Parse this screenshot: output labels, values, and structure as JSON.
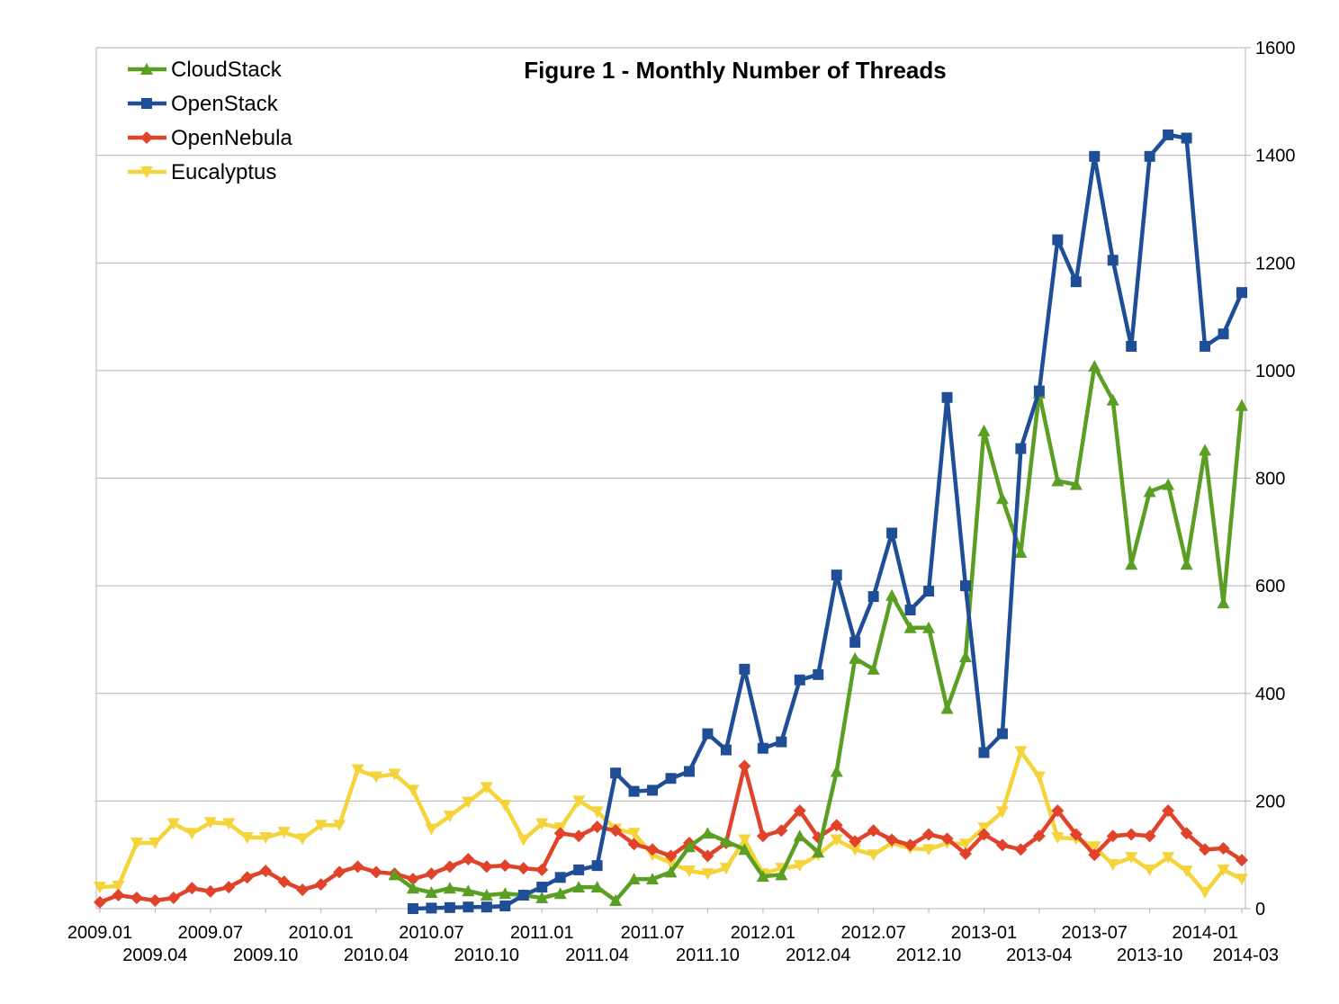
{
  "chart_data": {
    "type": "line",
    "title": "Figure 1 - Monthly Number of Threads",
    "xlabel": "",
    "ylabel": "",
    "ylim": [
      0,
      1600
    ],
    "y_ticks": [
      0,
      200,
      400,
      600,
      800,
      1000,
      1200,
      1400,
      1600
    ],
    "y_axis_side": "right",
    "grid": true,
    "legend_position": "top-left",
    "x": [
      "2009.01",
      "2009.02",
      "2009.03",
      "2009.04",
      "2009.05",
      "2009.06",
      "2009.07",
      "2009.08",
      "2009.09",
      "2009.10",
      "2009.11",
      "2009.12",
      "2010.01",
      "2010.02",
      "2010.03",
      "2010.04",
      "2010.05",
      "2010.06",
      "2010.07",
      "2010.08",
      "2010.09",
      "2010.10",
      "2010.11",
      "2010.12",
      "2011.01",
      "2011.02",
      "2011.03",
      "2011.04",
      "2011.05",
      "2011.06",
      "2011.07",
      "2011.08",
      "2011.09",
      "2011.10",
      "2011.11",
      "2011.12",
      "2012.01",
      "2012.02",
      "2012.03",
      "2012.04",
      "2012.05",
      "2012.06",
      "2012.07",
      "2012.08",
      "2012.09",
      "2012.10",
      "2012.11",
      "2012.12",
      "2013-01",
      "2013-02",
      "2013-03",
      "2013-04",
      "2013-05",
      "2013-06",
      "2013-07",
      "2013-08",
      "2013-09",
      "2013-10",
      "2013-11",
      "2013-12",
      "2014-01",
      "2014-02",
      "2014-03"
    ],
    "x_tick_labels": [
      {
        "index": 0,
        "label": "2009.01",
        "row": 1
      },
      {
        "index": 3,
        "label": "2009.04",
        "row": 2
      },
      {
        "index": 6,
        "label": "2009.07",
        "row": 1
      },
      {
        "index": 9,
        "label": "2009.10",
        "row": 2
      },
      {
        "index": 12,
        "label": "2010.01",
        "row": 1
      },
      {
        "index": 15,
        "label": "2010.04",
        "row": 2
      },
      {
        "index": 18,
        "label": "2010.07",
        "row": 1
      },
      {
        "index": 21,
        "label": "2010.10",
        "row": 2
      },
      {
        "index": 24,
        "label": "2011.01",
        "row": 1
      },
      {
        "index": 27,
        "label": "2011.04",
        "row": 2
      },
      {
        "index": 30,
        "label": "2011.07",
        "row": 1
      },
      {
        "index": 33,
        "label": "2011.10",
        "row": 2
      },
      {
        "index": 36,
        "label": "2012.01",
        "row": 1
      },
      {
        "index": 39,
        "label": "2012.04",
        "row": 2
      },
      {
        "index": 42,
        "label": "2012.07",
        "row": 1
      },
      {
        "index": 45,
        "label": "2012.10",
        "row": 2
      },
      {
        "index": 48,
        "label": "2013-01",
        "row": 1
      },
      {
        "index": 51,
        "label": "2013-04",
        "row": 2
      },
      {
        "index": 54,
        "label": "2013-07",
        "row": 1
      },
      {
        "index": 57,
        "label": "2013-10",
        "row": 2
      },
      {
        "index": 60,
        "label": "2014-01",
        "row": 1
      },
      {
        "index": 62,
        "label": "2014-03",
        "row": 2
      }
    ],
    "series": [
      {
        "name": "CloudStack",
        "color": "#5a9e24",
        "marker": "triangle-up",
        "values": [
          null,
          null,
          null,
          null,
          null,
          null,
          null,
          null,
          null,
          null,
          null,
          null,
          null,
          null,
          null,
          null,
          63,
          38,
          30,
          38,
          33,
          25,
          28,
          25,
          20,
          28,
          40,
          40,
          15,
          55,
          55,
          68,
          115,
          140,
          125,
          110,
          60,
          63,
          135,
          105,
          255,
          465,
          445,
          582,
          522,
          522,
          372,
          468,
          888,
          762,
          662,
          958,
          795,
          788,
          1008,
          945,
          640,
          775,
          788,
          640,
          852,
          568,
          935
        ]
      },
      {
        "name": "OpenStack",
        "color": "#1f4e96",
        "marker": "square",
        "values": [
          null,
          null,
          null,
          null,
          null,
          null,
          null,
          null,
          null,
          null,
          null,
          null,
          null,
          null,
          null,
          null,
          null,
          0,
          1,
          2,
          3,
          3,
          5,
          25,
          40,
          58,
          72,
          80,
          252,
          218,
          220,
          242,
          255,
          325,
          295,
          445,
          298,
          310,
          425,
          435,
          620,
          495,
          580,
          698,
          555,
          590,
          950,
          600,
          290,
          325,
          855,
          962,
          1243,
          1165,
          1398,
          1205,
          1045,
          1398,
          1438,
          1432,
          1045,
          1068,
          1145
        ]
      },
      {
        "name": "OpenNebula",
        "color": "#e0422a",
        "marker": "diamond",
        "values": [
          12,
          25,
          20,
          15,
          20,
          38,
          32,
          40,
          58,
          70,
          50,
          35,
          45,
          68,
          78,
          68,
          65,
          55,
          65,
          78,
          92,
          78,
          80,
          75,
          72,
          140,
          135,
          152,
          145,
          120,
          110,
          98,
          122,
          98,
          122,
          265,
          135,
          145,
          182,
          132,
          155,
          125,
          145,
          128,
          118,
          138,
          130,
          102,
          138,
          118,
          110,
          135,
          182,
          138,
          100,
          135,
          138,
          135,
          182,
          140,
          110,
          112,
          90
        ]
      },
      {
        "name": "Eucalyptus",
        "color": "#f5d33a",
        "marker": "triangle-down",
        "values": [
          40,
          42,
          122,
          122,
          158,
          140,
          160,
          158,
          132,
          132,
          142,
          130,
          155,
          155,
          258,
          245,
          250,
          220,
          148,
          172,
          198,
          225,
          192,
          128,
          158,
          150,
          200,
          180,
          148,
          140,
          100,
          85,
          70,
          65,
          75,
          128,
          65,
          75,
          80,
          100,
          128,
          110,
          100,
          122,
          112,
          110,
          122,
          120,
          150,
          180,
          292,
          245,
          132,
          130,
          115,
          82,
          95,
          72,
          95,
          70,
          30,
          72,
          55
        ]
      }
    ]
  }
}
